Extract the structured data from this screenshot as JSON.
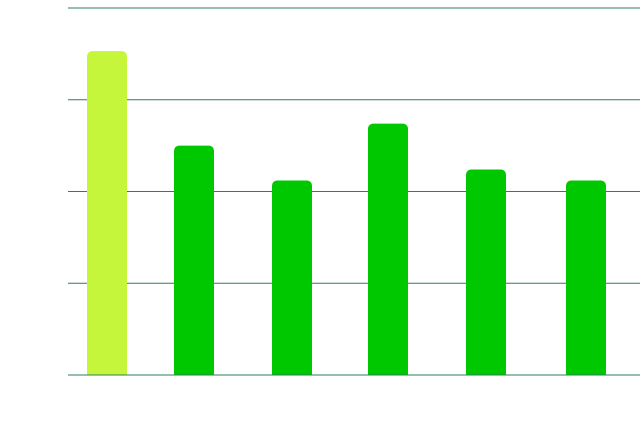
{
  "chart_data": {
    "type": "bar",
    "title": "",
    "xlabel": "",
    "ylabel": "",
    "categories": [
      "",
      "",
      "",
      "",
      "",
      ""
    ],
    "values": [
      3.53,
      2.5,
      2.12,
      2.74,
      2.24,
      2.12
    ],
    "ylim": [
      0,
      4
    ],
    "yticks": [
      0,
      1,
      2,
      3,
      4
    ],
    "grid": true,
    "legend": "none",
    "colors": {
      "highlight": "#c6f63c",
      "bar": "#00c800",
      "grid": "#2e7d5b",
      "background": "#ffffff"
    },
    "highlight_index": 0
  }
}
